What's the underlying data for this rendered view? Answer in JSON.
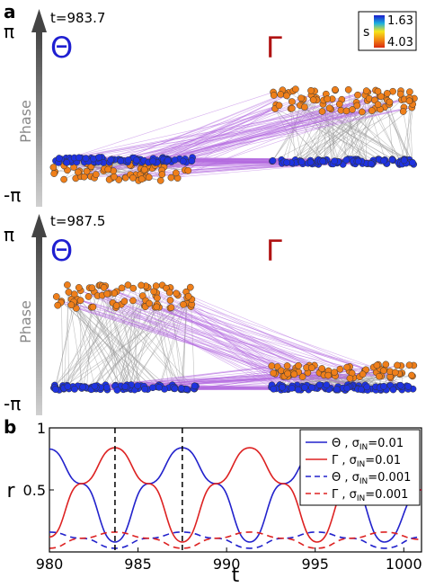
{
  "panel_a_label": "a",
  "panel_b_label": "b",
  "snapshot_top": {
    "time_label": "t=983.7",
    "theta_symbol": "Θ",
    "gamma_symbol": "Γ"
  },
  "snapshot_bottom": {
    "time_label": "t=987.5",
    "theta_symbol": "Θ",
    "gamma_symbol": "Γ"
  },
  "phase_axis": {
    "label": "Phase",
    "top_tick": "π",
    "bottom_tick": "-π"
  },
  "colorbar": {
    "label": "s",
    "max_label": "1.63",
    "min_label": "4.03"
  },
  "colors": {
    "theta": "#1f1fd1",
    "gamma": "#b01212",
    "blue_line": "#2222cc",
    "red_line": "#dd2222",
    "purple_edge": "#b46be0",
    "grey_edge": "#9a9a9a",
    "node_blue": "#1f33e0",
    "node_orange": "#ef7f1a"
  },
  "chart_data": {
    "type": "line",
    "xlabel": "t",
    "ylabel": "r",
    "xlim": [
      980,
      1001
    ],
    "ylim": [
      0,
      1
    ],
    "xticks": [
      980,
      985,
      990,
      995,
      1000
    ],
    "yticks": [
      0.5,
      1
    ],
    "ytick_labels": [
      "0.5",
      "1"
    ],
    "vlines": [
      983.7,
      987.5
    ],
    "legend_position": "top-right",
    "series": [
      {
        "name": "Θ , σIN=0.01",
        "name_main": "Θ , σ",
        "name_sub": "IN",
        "name_tail": "=0.01",
        "color": "#2222cc",
        "dash": "solid",
        "x": [
          980,
          981.8,
          983.7,
          985.6,
          987.5,
          989.4,
          991.3,
          993.2,
          995.1,
          997.0,
          998.9,
          1001
        ],
        "y": [
          0.83,
          0.55,
          0.08,
          0.55,
          0.84,
          0.55,
          0.08,
          0.55,
          0.84,
          0.55,
          0.08,
          0.5
        ]
      },
      {
        "name": "Γ , σIN=0.01",
        "name_main": "Γ , σ",
        "name_sub": "IN",
        "name_tail": "=0.01",
        "color": "#dd2222",
        "dash": "solid",
        "x": [
          980,
          981.8,
          983.7,
          985.6,
          987.5,
          989.4,
          991.3,
          993.2,
          995.1,
          997.0,
          998.9,
          1001
        ],
        "y": [
          0.12,
          0.55,
          0.84,
          0.55,
          0.08,
          0.55,
          0.84,
          0.55,
          0.08,
          0.55,
          0.84,
          0.5
        ]
      },
      {
        "name": "Θ , σIN=0.001",
        "name_main": "Θ , σ",
        "name_sub": "IN",
        "name_tail": "=0.001",
        "color": "#2222cc",
        "dash": "dashed",
        "x": [
          980,
          981.8,
          983.7,
          985.6,
          987.5,
          989.4,
          991.3,
          993.2,
          995.1,
          997.0,
          998.9,
          1001
        ],
        "y": [
          0.16,
          0.11,
          0.03,
          0.11,
          0.16,
          0.11,
          0.03,
          0.11,
          0.16,
          0.11,
          0.03,
          0.12
        ]
      },
      {
        "name": "Γ , σIN=0.001",
        "name_main": "Γ , σ",
        "name_sub": "IN",
        "name_tail": "=0.001",
        "color": "#dd2222",
        "dash": "dashed",
        "x": [
          980,
          981.8,
          983.7,
          985.6,
          987.5,
          989.4,
          991.3,
          993.2,
          995.1,
          997.0,
          998.9,
          1001
        ],
        "y": [
          0.03,
          0.11,
          0.16,
          0.11,
          0.03,
          0.11,
          0.16,
          0.11,
          0.03,
          0.11,
          0.16,
          0.1
        ]
      }
    ]
  }
}
